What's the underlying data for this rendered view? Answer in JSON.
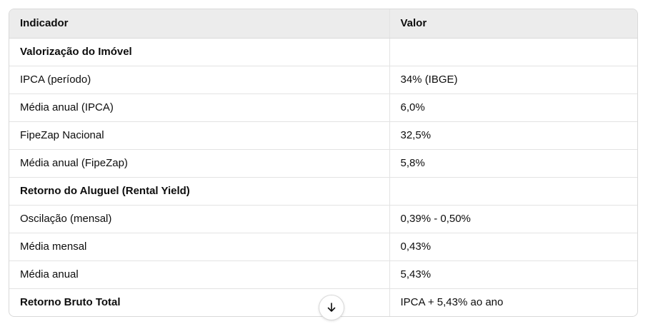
{
  "table": {
    "headers": [
      "Indicador",
      "Valor"
    ],
    "rows": [
      {
        "indicator": "Valorização do Imóvel",
        "value": "",
        "section": true
      },
      {
        "indicator": "IPCA (período)",
        "value": "34% (IBGE)",
        "section": false
      },
      {
        "indicator": "Média anual (IPCA)",
        "value": "6,0%",
        "section": false
      },
      {
        "indicator": "FipeZap Nacional",
        "value": "32,5%",
        "section": false
      },
      {
        "indicator": "Média anual (FipeZap)",
        "value": "5,8%",
        "section": false
      },
      {
        "indicator": "Retorno do Aluguel (Rental Yield)",
        "value": "",
        "section": true
      },
      {
        "indicator": "Oscilação (mensal)",
        "value": "0,39% - 0,50%",
        "section": false
      },
      {
        "indicator": "Média mensal",
        "value": "0,43%",
        "section": false
      },
      {
        "indicator": "Média anual",
        "value": "5,43%",
        "section": false
      },
      {
        "indicator": "Retorno Bruto Total",
        "value": "IPCA + 5,43% ao ano",
        "section": true
      }
    ]
  },
  "scroll_button": {
    "icon": "arrow-down-icon"
  }
}
